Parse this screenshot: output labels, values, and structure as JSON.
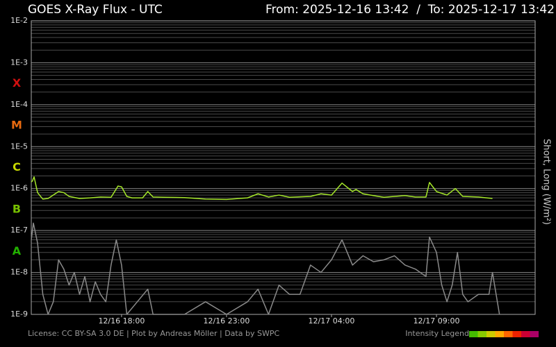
{
  "chart_data": {
    "type": "line",
    "title": "GOES X-Ray Flux - UTC",
    "subtitle": "From: 2025-12-16 13:42  /  To: 2025-12-17 13:42",
    "y_label": "Short, Long (W/m²)",
    "footer": "License: CC BY-SA 3.0 DE | Plot by Andreas Möller | Data by SWPC",
    "log_y": true,
    "grid": true,
    "minor_grid": true,
    "xlim": [
      "12/16 13:42",
      "12/17 13:42"
    ],
    "xticks": [
      "12/16 18:00",
      "12/16 23:00",
      "12/17 04:00",
      "12/17 09:00"
    ],
    "ylim": [
      1e-09,
      0.01
    ],
    "yticks": [
      {
        "value": 1e-09,
        "label": "1E-9"
      },
      {
        "value": 1e-08,
        "label": "1E-8"
      },
      {
        "value": 1e-07,
        "label": "1E-7"
      },
      {
        "value": 1e-06,
        "label": "1E-6"
      },
      {
        "value": 1e-05,
        "label": "1E-5"
      },
      {
        "value": 0.0001,
        "label": "1E-4"
      },
      {
        "value": 0.001,
        "label": "1E-3"
      },
      {
        "value": 0.01,
        "label": "1E-2"
      }
    ],
    "flare_classes": [
      {
        "label": "A",
        "value": 1e-08,
        "color": "#22b000"
      },
      {
        "label": "B",
        "value": 1e-07,
        "color": "#77c000"
      },
      {
        "label": "C",
        "value": 1e-06,
        "color": "#c8d800"
      },
      {
        "label": "M",
        "value": 1e-05,
        "color": "#e86a10"
      },
      {
        "label": "X",
        "value": 0.0001,
        "color": "#d01010"
      }
    ],
    "series": [
      {
        "name": "Long",
        "color": "#a6e82a",
        "x": [
          "12/16 13:42",
          "12/16 13:45",
          "12/16 13:50",
          "12/16 14:00",
          "12/16 14:15",
          "12/16 14:30",
          "12/16 15:00",
          "12/16 15:15",
          "12/16 15:30",
          "12/16 16:00",
          "12/16 16:30",
          "12/16 17:00",
          "12/16 17:30",
          "12/16 17:50",
          "12/16 18:00",
          "12/16 18:15",
          "12/16 18:30",
          "12/16 19:00",
          "12/16 19:15",
          "12/16 19:30",
          "12/16 20:00",
          "12/16 21:00",
          "12/16 22:00",
          "12/16 23:00",
          "12/17 00:00",
          "12/17 00:30",
          "12/17 01:00",
          "12/17 01:30",
          "12/17 02:00",
          "12/17 03:00",
          "12/17 03:30",
          "12/17 04:00",
          "12/17 04:30",
          "12/17 05:00",
          "12/17 05:10",
          "12/17 05:30",
          "12/17 06:00",
          "12/17 06:30",
          "12/17 07:00",
          "12/17 07:30",
          "12/17 08:00",
          "12/17 08:30",
          "12/17 08:40",
          "12/17 09:00",
          "12/17 09:30",
          "12/17 09:54",
          "12/17 10:15",
          "12/17 11:00",
          "12/17 11:40"
        ],
        "values": [
          1.45e-06,
          1.5e-06,
          1.9e-06,
          8e-07,
          5.6e-07,
          5.8e-07,
          8.5e-07,
          8e-07,
          6.5e-07,
          5.8e-07,
          6e-07,
          6.3e-07,
          6.2e-07,
          1.15e-06,
          1.1e-06,
          6.5e-07,
          6e-07,
          6e-07,
          8.5e-07,
          6.3e-07,
          6.2e-07,
          6.1e-07,
          5.6e-07,
          5.5e-07,
          6e-07,
          7.5e-07,
          6.3e-07,
          7e-07,
          6.2e-07,
          6.5e-07,
          7.5e-07,
          7e-07,
          1.35e-06,
          8.5e-07,
          9.5e-07,
          7.5e-07,
          6.8e-07,
          6.2e-07,
          6.5e-07,
          6.8e-07,
          6.3e-07,
          6.3e-07,
          1.4e-06,
          8.5e-07,
          7e-07,
          1e-06,
          6.5e-07,
          6.3e-07,
          5.8e-07
        ]
      },
      {
        "name": "Short",
        "color": "#8a8a8a",
        "x": [
          "12/16 13:42",
          "12/16 13:48",
          "12/16 14:00",
          "12/16 14:15",
          "12/16 14:30",
          "12/16 14:45",
          "12/16 15:00",
          "12/16 15:15",
          "12/16 15:30",
          "12/16 15:45",
          "12/16 16:00",
          "12/16 16:15",
          "12/16 16:30",
          "12/16 16:45",
          "12/16 17:00",
          "12/16 17:15",
          "12/16 17:30",
          "12/16 17:45",
          "12/16 18:00",
          "12/16 18:15",
          "12/16 18:45",
          "12/16 19:15",
          "12/16 19:30",
          "12/16 21:00",
          "12/16 22:00",
          "12/16 23:00",
          "12/17 00:00",
          "12/17 00:30",
          "12/17 01:00",
          "12/17 01:30",
          "12/17 02:00",
          "12/17 02:30",
          "12/17 03:00",
          "12/17 03:30",
          "12/17 04:00",
          "12/17 04:30",
          "12/17 05:00",
          "12/17 05:30",
          "12/17 06:00",
          "12/17 06:30",
          "12/17 07:00",
          "12/17 07:30",
          "12/17 08:00",
          "12/17 08:30",
          "12/17 08:40",
          "12/17 09:00",
          "12/17 09:15",
          "12/17 09:30",
          "12/17 09:45",
          "12/17 10:00",
          "12/17 10:15",
          "12/17 10:30",
          "12/17 11:00",
          "12/17 11:30",
          "12/17 11:40",
          "12/17 12:00"
        ],
        "values": [
          6e-08,
          1.5e-07,
          5e-08,
          3e-09,
          1e-09,
          2e-09,
          2e-08,
          1.2e-08,
          5e-09,
          1e-08,
          3e-09,
          8e-09,
          2e-09,
          6e-09,
          3e-09,
          2e-09,
          1.5e-08,
          6e-08,
          1.5e-08,
          1e-09,
          2e-09,
          4e-09,
          1e-09,
          1e-09,
          2e-09,
          1e-09,
          2e-09,
          4e-09,
          1e-09,
          5e-09,
          3e-09,
          3e-09,
          1.5e-08,
          1e-08,
          2e-08,
          6e-08,
          1.5e-08,
          2.5e-08,
          1.8e-08,
          2e-08,
          2.5e-08,
          1.5e-08,
          1.2e-08,
          8e-09,
          7e-08,
          3e-08,
          5e-09,
          2e-09,
          5e-09,
          3e-08,
          3e-09,
          2e-09,
          3e-09,
          3e-09,
          1e-08,
          1e-09
        ]
      }
    ],
    "intensity_legend": {
      "label": "Intensity Legend",
      "colors": [
        "#44bb00",
        "#88cc00",
        "#cccc00",
        "#ffaa00",
        "#ff6600",
        "#ee2200",
        "#cc0033",
        "#aa0066"
      ]
    }
  }
}
